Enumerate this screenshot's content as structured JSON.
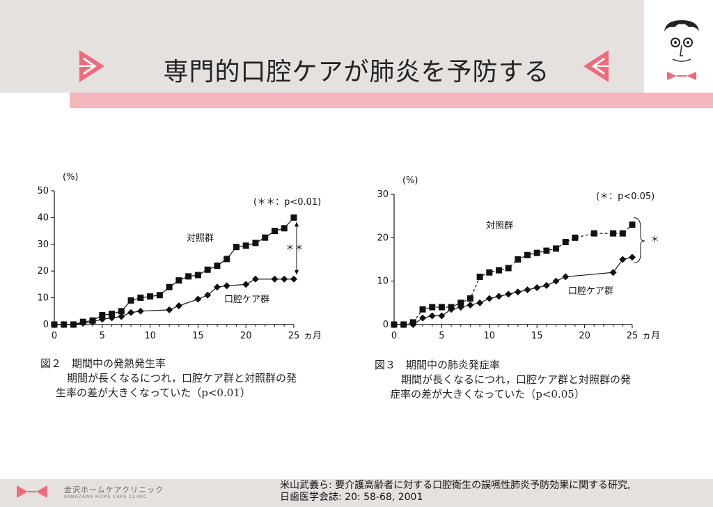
{
  "slide": {
    "title": "専門的口腔ケアが肺炎を予防する",
    "accent_color": "#ef6b7b",
    "strip_color": "#f5b6bd",
    "band_color": "#e5e1df",
    "left_icon": "pink-play-triangle-icon",
    "right_icon": "pink-reverse-triangle-icon",
    "mascot_icon": "mustache-face-icon"
  },
  "chart_data": [
    {
      "type": "line",
      "yunit": "(%)",
      "xunit": "ヵ月",
      "xlim": [
        0,
        25
      ],
      "ylim": [
        0,
        50
      ],
      "xticks": [
        0,
        5,
        10,
        15,
        20,
        25
      ],
      "yticks": [
        0,
        10,
        20,
        30,
        40,
        50
      ],
      "grid": false,
      "series": [
        {
          "name": "対照群",
          "marker": "square",
          "points": [
            [
              0,
              0
            ],
            [
              1,
              0
            ],
            [
              2,
              0
            ],
            [
              3,
              1
            ],
            [
              4,
              1.5
            ],
            [
              5,
              3.5
            ],
            [
              6,
              4
            ],
            [
              7,
              5
            ],
            [
              8,
              9
            ],
            [
              9,
              10
            ],
            [
              10,
              10.5
            ],
            [
              11,
              11
            ],
            [
              12,
              14
            ],
            [
              13,
              16.5
            ],
            [
              14,
              18
            ],
            [
              15,
              18.5
            ],
            [
              16,
              20.5
            ],
            [
              17,
              22
            ],
            [
              18,
              24.5
            ],
            [
              19,
              29
            ],
            [
              20,
              29.5
            ],
            [
              21,
              30.5
            ],
            [
              22,
              32.5
            ],
            [
              23,
              35
            ],
            [
              24,
              36
            ],
            [
              25,
              40
            ]
          ]
        },
        {
          "name": "口腔ケア群",
          "marker": "diamond",
          "points": [
            [
              0,
              0
            ],
            [
              1,
              0
            ],
            [
              2,
              0
            ],
            [
              3,
              0.5
            ],
            [
              4,
              1
            ],
            [
              5,
              2
            ],
            [
              6,
              2.5
            ],
            [
              7,
              3
            ],
            [
              8,
              4.5
            ],
            [
              9,
              5
            ],
            [
              12,
              5.5
            ],
            [
              13,
              7
            ],
            [
              15,
              9.5
            ],
            [
              16,
              11
            ],
            [
              17,
              14
            ],
            [
              18,
              14.5
            ],
            [
              20,
              15
            ],
            [
              21,
              17
            ],
            [
              23,
              17
            ],
            [
              24,
              17
            ],
            [
              25,
              17
            ]
          ]
        }
      ],
      "annotations": {
        "significance": "(＊＊：p<0.01)",
        "bracket_label": "＊＊"
      },
      "caption_title": "図２　期間中の発熱発生率",
      "caption_body_1": "期間が長くなるにつれ，口腔ケア群と対照群の発",
      "caption_body_2": "生率の差が大きくなっていた（p<0.01）"
    },
    {
      "type": "line",
      "yunit": "(%)",
      "xunit": "ヵ月",
      "xlim": [
        0,
        25
      ],
      "ylim": [
        0,
        30
      ],
      "xticks": [
        0,
        5,
        10,
        15,
        20,
        25
      ],
      "yticks": [
        0,
        10,
        20,
        30
      ],
      "grid": false,
      "series": [
        {
          "name": "対照群",
          "marker": "square",
          "points": [
            [
              0,
              0
            ],
            [
              1,
              0
            ],
            [
              2,
              0.5
            ],
            [
              3,
              3.5
            ],
            [
              4,
              4
            ],
            [
              5,
              4
            ],
            [
              6,
              4
            ],
            [
              7,
              5
            ],
            [
              8,
              6
            ],
            [
              9,
              11
            ],
            [
              10,
              12
            ],
            [
              11,
              12.5
            ],
            [
              12,
              13
            ],
            [
              13,
              15
            ],
            [
              14,
              16
            ],
            [
              15,
              16.5
            ],
            [
              16,
              17
            ],
            [
              17,
              17.5
            ],
            [
              18,
              19
            ],
            [
              19,
              20
            ],
            [
              21,
              21
            ],
            [
              23,
              21
            ],
            [
              24,
              21
            ],
            [
              25,
              23
            ]
          ]
        },
        {
          "name": "口腔ケア群",
          "marker": "diamond",
          "points": [
            [
              0,
              0
            ],
            [
              1,
              0
            ],
            [
              2,
              0
            ],
            [
              3,
              1.5
            ],
            [
              4,
              2
            ],
            [
              5,
              2
            ],
            [
              6,
              3.5
            ],
            [
              7,
              4
            ],
            [
              8,
              4.5
            ],
            [
              9,
              5
            ],
            [
              10,
              6
            ],
            [
              11,
              6.5
            ],
            [
              12,
              7
            ],
            [
              13,
              7.5
            ],
            [
              14,
              8
            ],
            [
              15,
              8.5
            ],
            [
              16,
              9
            ],
            [
              17,
              10
            ],
            [
              18,
              11
            ],
            [
              23,
              12
            ],
            [
              24,
              15
            ],
            [
              25,
              15.5
            ]
          ]
        }
      ],
      "annotations": {
        "significance": "(＊：p<0.05)",
        "bracket_label": "＊"
      },
      "caption_title": "図３　期間中の肺炎発症率",
      "caption_body_1": "期間が長くなるにつれ，口腔ケア群と対照群の発",
      "caption_body_2": "症率の差が大きくなっていた（p<0.05）"
    }
  ],
  "footer": {
    "clinic_name": "金沢ホームケアクリニック",
    "clinic_sub": "KANAZAWA HOME CARE CLINIC",
    "citation_line1": "米山武義ら: 要介護高齢者に対する口腔衛生の誤嚥性肺炎予防効果に関する研究,",
    "citation_line2": "日歯医学会誌: 20: 58-68, 2001",
    "logo_icon": "bowtie-logo-icon"
  }
}
